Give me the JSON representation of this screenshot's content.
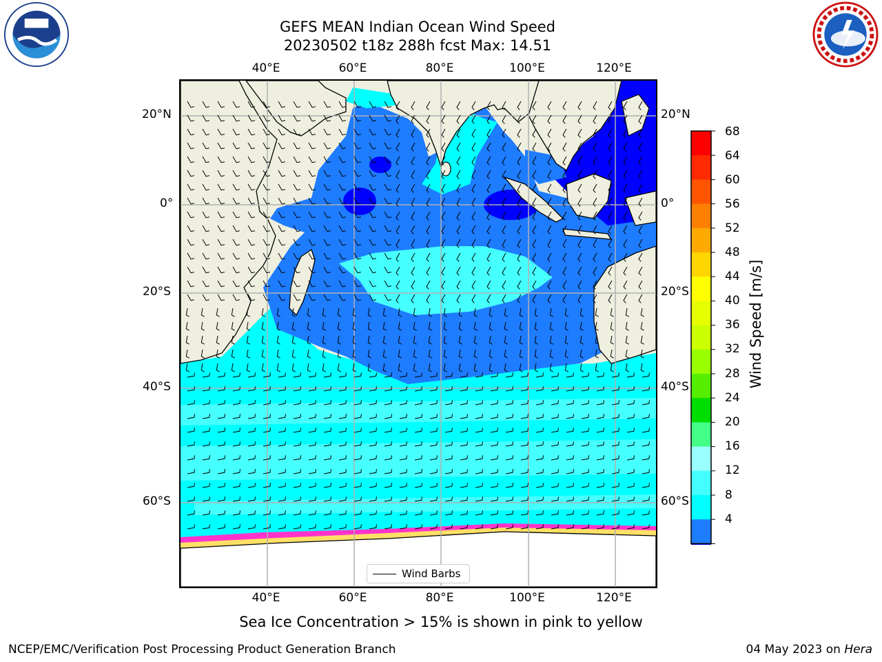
{
  "title": {
    "line1": "GEFS MEAN Indian Ocean Wind Speed",
    "line2": "20230502 t18z 288h fcst   Max: 14.51"
  },
  "logos": [
    "noaa-logo",
    "national-weather-service-logo"
  ],
  "map": {
    "lon_ticks": [
      "40°E",
      "60°E",
      "80°E",
      "100°E",
      "120°E"
    ],
    "lat_ticks": [
      "20°N",
      "0°",
      "20°S",
      "40°S",
      "60°S"
    ],
    "legend_label": "Wind Barbs",
    "colors": {
      "land": "#efefdf",
      "speed_4_8": "#1e7cff",
      "speed_8_12": "#00ffff",
      "speed_12_16": "#46ffff",
      "speed_lt_4": "#0000ff",
      "sea_ice_white": "#ffffff",
      "sea_ice_pink": "#ff33cc",
      "sea_ice_yellow": "#ffe066"
    }
  },
  "colorbar": {
    "title": "Wind Speed [m/s]",
    "labels": [
      "68",
      "64",
      "60",
      "56",
      "52",
      "48",
      "44",
      "40",
      "36",
      "32",
      "28",
      "24",
      "20",
      "16",
      "12",
      "8",
      "4"
    ],
    "colors": [
      "#ff0000",
      "#ff2a00",
      "#ff5500",
      "#ff8000",
      "#ffaa00",
      "#ffd500",
      "#ffff00",
      "#e6ff00",
      "#ccff00",
      "#99ff00",
      "#55ee00",
      "#00dd00",
      "#44ff88",
      "#99ffff",
      "#44ffff",
      "#00ffff",
      "#1e7cff"
    ],
    "extend_color": "#0000ff"
  },
  "subcaption": "Sea Ice Concentration > 15% is shown in pink to yellow",
  "footer": {
    "left": "NCEP/EMC/Verification Post Processing Product Generation Branch",
    "right_prefix": "04 May 2023 on ",
    "right_host": "Hera"
  }
}
